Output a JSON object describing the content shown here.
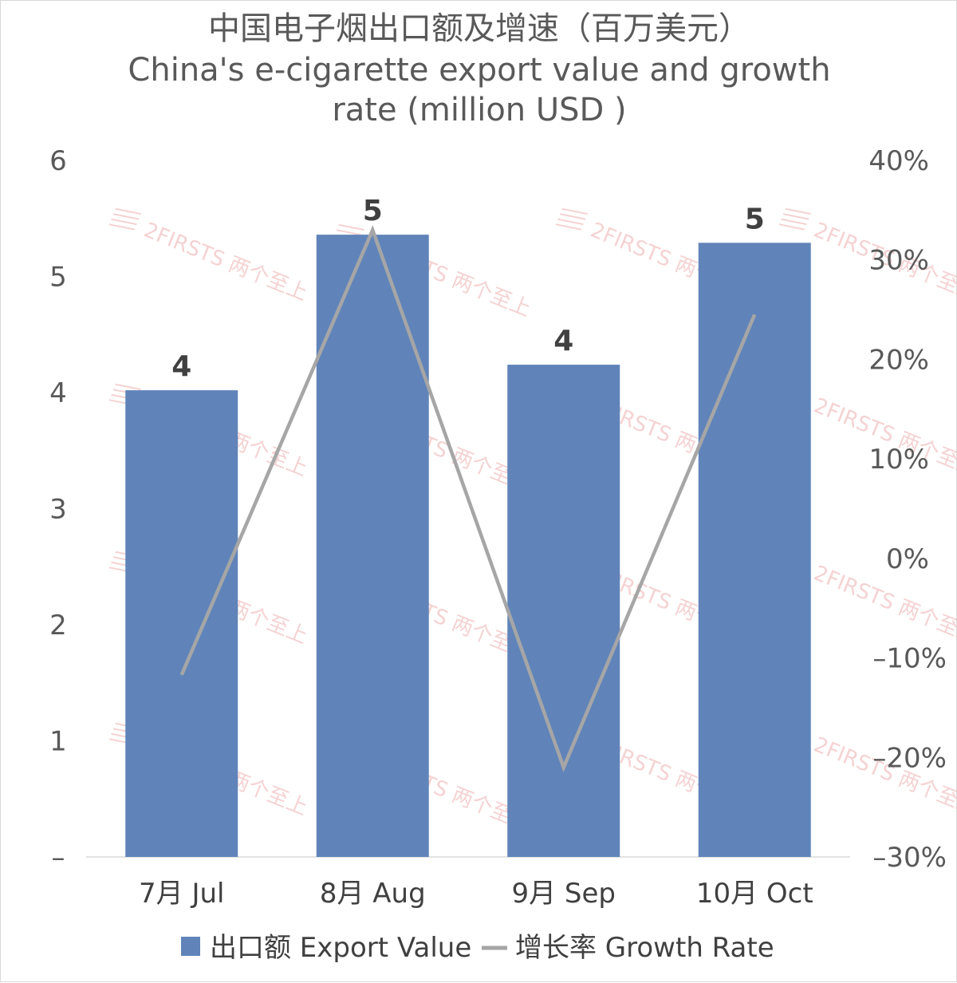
{
  "chart_data": {
    "type": "bar",
    "title_lines": [
      "中国电子烟出口额及增速（百万美元）",
      "China's e-cigarette export value and growth",
      "rate (million USD )"
    ],
    "categories": [
      "7月 Jul",
      "8月 Aug",
      "9月 Sep",
      "10月 Oct"
    ],
    "series": [
      {
        "name": "出口额 Export Value",
        "kind": "bar",
        "axis": "left",
        "color": "#6084B9",
        "values": [
          4.02,
          5.36,
          4.24,
          5.29
        ],
        "labels": [
          "4",
          "5",
          "4",
          "5"
        ]
      },
      {
        "name": "增长率 Growth Rate",
        "kind": "line",
        "axis": "right",
        "color": "#A6A6A6",
        "values": [
          -0.117,
          0.33,
          -0.21,
          0.245
        ]
      }
    ],
    "left_axis": {
      "ylim": [
        0,
        6
      ],
      "ticks": [
        0,
        1,
        2,
        3,
        4,
        5,
        6
      ],
      "tick_labels": [
        "–",
        "1",
        "2",
        "3",
        "4",
        "5",
        "6"
      ]
    },
    "right_axis": {
      "ylim": [
        -0.3,
        0.4
      ],
      "ticks": [
        -0.3,
        -0.2,
        -0.1,
        0,
        0.1,
        0.2,
        0.3,
        0.4
      ],
      "tick_labels": [
        "–30%",
        "–20%",
        "–10%",
        "0%",
        "10%",
        "20%",
        "30%",
        "40%"
      ]
    },
    "legend_position": "bottom-center",
    "watermark": "2FIRSTS 两个至上"
  }
}
